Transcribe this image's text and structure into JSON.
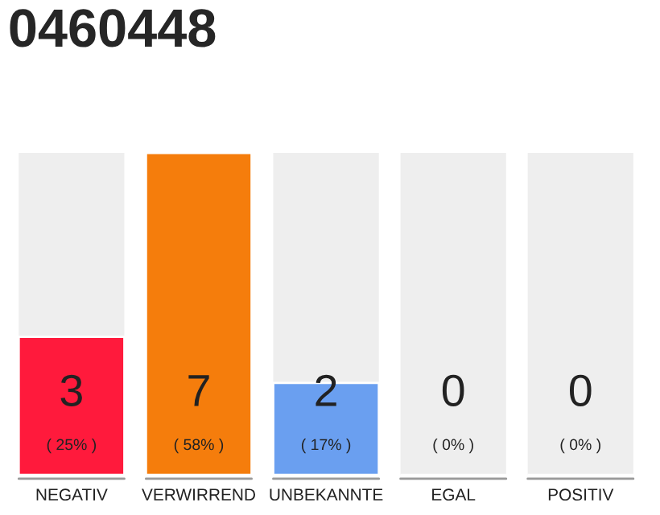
{
  "chart_data": {
    "type": "bar",
    "title": "0460448",
    "categories": [
      "NEGATIV",
      "VERWIRREND",
      "UNBEKANNTE",
      "EGAL",
      "POSITIV"
    ],
    "values": [
      3,
      7,
      2,
      0,
      0
    ],
    "colors": [
      "#ff1a3c",
      "#f57d0c",
      "#6a9ff0",
      null,
      null
    ],
    "value_labels": [
      "3",
      "7",
      "2",
      "0",
      "0"
    ],
    "annotations": [
      "( 25% )",
      "( 58% )",
      "( 17% )",
      "( 0% )",
      "( 0% )"
    ],
    "grid": false,
    "legend": false
  }
}
